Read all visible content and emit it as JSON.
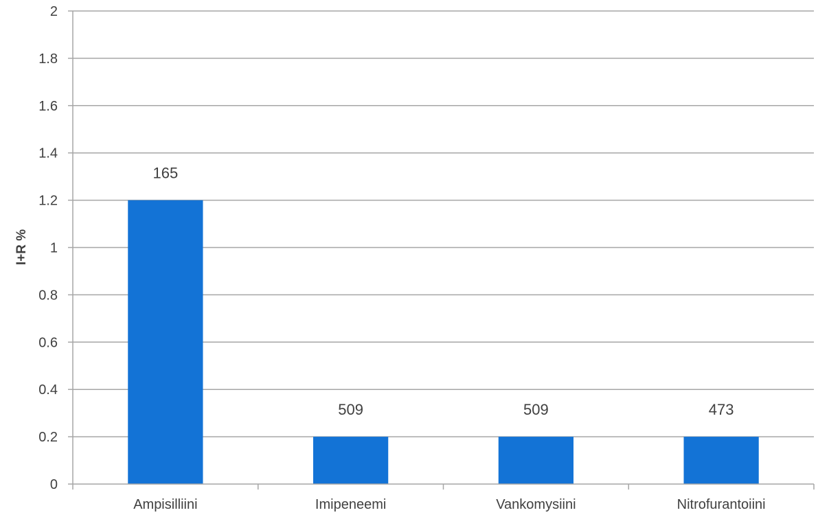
{
  "chart_data": {
    "type": "bar",
    "title": "",
    "xlabel": "",
    "ylabel": "I+R %",
    "categories": [
      "Ampisilliini",
      "Imipeneemi",
      "Vankomysiini",
      "Nitrofurantoiini"
    ],
    "values": [
      1.2,
      0.2,
      0.2,
      0.2
    ],
    "data_labels": [
      "165",
      "509",
      "509",
      "473"
    ],
    "ylim": [
      0,
      2
    ],
    "yticks": [
      0,
      0.2,
      0.4,
      0.6,
      0.8,
      1,
      1.2,
      1.4,
      1.6,
      1.8,
      2
    ],
    "ytick_labels": [
      "0",
      "0.2",
      "0.4",
      "0.6",
      "0.8",
      "1",
      "1.2",
      "1.4",
      "1.6",
      "1.8",
      "2"
    ],
    "grid": true,
    "legend": "none",
    "bar_color": "#1373d6"
  }
}
